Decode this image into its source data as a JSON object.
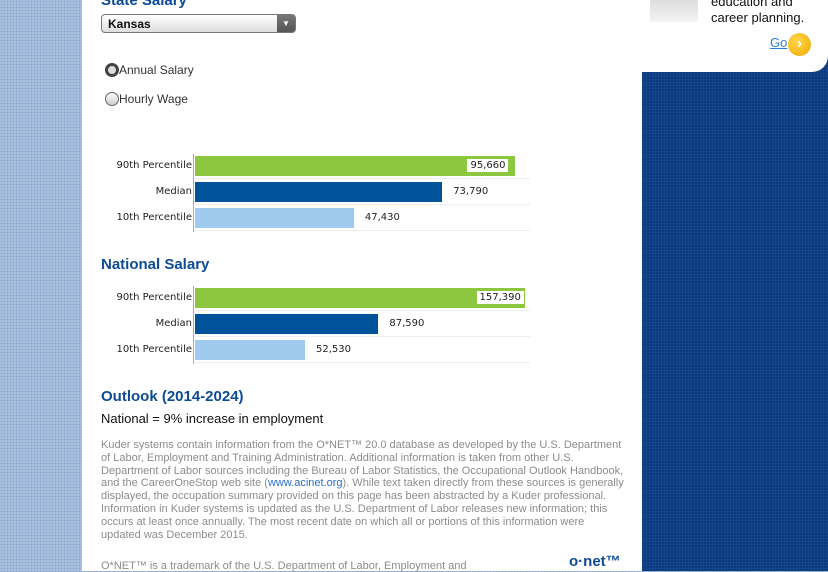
{
  "state": {
    "title": "State Salary",
    "select_value": "Kansas"
  },
  "radios": [
    {
      "label": "Annual Salary",
      "checked": true
    },
    {
      "label": "Hourly Wage",
      "checked": false
    }
  ],
  "national": {
    "title": "National Salary"
  },
  "outlook": {
    "title": "Outlook (2014-2024)",
    "text": "National = 9% increase in employment"
  },
  "disclaimer": {
    "p1": "Kuder systems contain information from the O*NET™ 20.0 database as developed by the U.S. Department of Labor, Employment and Training Administration. Additional information is taken from other U.S. Department of Labor sources including the Bureau of Labor Statistics, the Occupational Outlook Handbook, and the CareerOneStop web site (",
    "link": "www.acinet.org",
    "p2": "). While text taken directly from these sources is generally displayed, the occupation summary provided on this page has been abstracted by a Kuder professional. Information in Kuder systems is updated as the U.S. Department of Labor releases new information; this occurs at least once annually. The most recent date on which all or portions of this information were updated was December 2015.",
    "trademark": "O*NET™ is a trademark of the U.S. Department of Labor, Employment and",
    "logo": "o·net™"
  },
  "sidebar": {
    "text1": "education and",
    "text2": "career planning.",
    "go": "Go"
  },
  "colors": {
    "p90": "#8dc63f",
    "median": "#00529b",
    "p10": "#9fcaee"
  },
  "chart_data": [
    {
      "type": "bar",
      "title": "State Salary",
      "categories": [
        "90th Percentile",
        "Median",
        "10th Percentile"
      ],
      "values": [
        95660,
        73790,
        47430
      ],
      "labels": [
        "95,660",
        "73,790",
        "47,430"
      ],
      "xlim": [
        0,
        100000
      ]
    },
    {
      "type": "bar",
      "title": "National Salary",
      "categories": [
        "90th Percentile",
        "Median",
        "10th Percentile"
      ],
      "values": [
        157390,
        87590,
        52530
      ],
      "labels": [
        "157,390",
        "87,590",
        "52,530"
      ],
      "xlim": [
        0,
        160000
      ]
    }
  ]
}
